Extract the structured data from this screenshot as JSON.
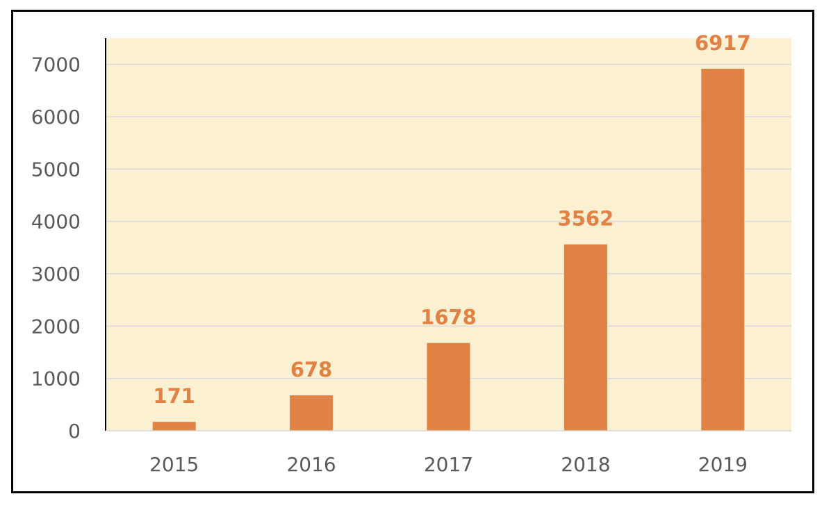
{
  "chart_data": {
    "type": "bar",
    "categories": [
      "2015",
      "2016",
      "2017",
      "2018",
      "2019"
    ],
    "values": [
      171,
      678,
      1678,
      3562,
      6917
    ],
    "data_labels": [
      "171",
      "678",
      "1678",
      "3562",
      "6917"
    ],
    "y_ticks": [
      "0",
      "1000",
      "2000",
      "3000",
      "4000",
      "5000",
      "6000",
      "7000"
    ],
    "ylim": [
      0,
      7500
    ],
    "grid": true,
    "legend": "none",
    "title": "",
    "xlabel": "",
    "ylabel": "",
    "colors": {
      "bar": "#E08244",
      "label": "#E08244",
      "plot_background": "#FBF0D2",
      "gridline": "#D9D9D9",
      "axis": "#000000",
      "tick_text": "#595959"
    }
  }
}
